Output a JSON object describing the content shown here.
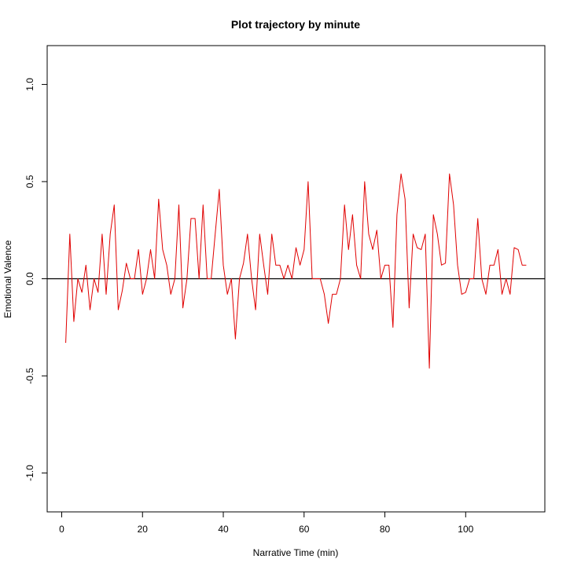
{
  "chart_data": {
    "type": "line",
    "title": "Plot trajectory by minute",
    "xlabel": "Narrative Time (min)",
    "ylabel": "Emotional Valence",
    "xlim": [
      -3.6,
      119.6
    ],
    "ylim": [
      -1.2,
      1.2
    ],
    "xticks": [
      0,
      20,
      40,
      60,
      80,
      100
    ],
    "yticks": [
      -1.0,
      -0.5,
      0.0,
      0.5,
      1.0
    ],
    "xtick_labels": [
      "0",
      "20",
      "40",
      "60",
      "80",
      "100"
    ],
    "ytick_labels": [
      "-1.0",
      "-0.5",
      "0.0",
      "0.5",
      "1.0"
    ],
    "reference_line_y": 0,
    "colors": {
      "series": "#e00000",
      "reference": "#000000",
      "frame": "#000000"
    },
    "grid": false,
    "series": [
      {
        "x": [
          1,
          2,
          3,
          4,
          5,
          6,
          7,
          8,
          9,
          10,
          11,
          12,
          13,
          14,
          15,
          16,
          17,
          18,
          19,
          20,
          21,
          22,
          23,
          24,
          25,
          26,
          27,
          28,
          29,
          30,
          31,
          32,
          33,
          34,
          35,
          36,
          37,
          38,
          39,
          40,
          41,
          42,
          43,
          44,
          45,
          46,
          47,
          48,
          49,
          50,
          51,
          52,
          53,
          54,
          55,
          56,
          57,
          58,
          59,
          60,
          61,
          62,
          63,
          64,
          65,
          66,
          67,
          68,
          69,
          70,
          71,
          72,
          73,
          74,
          75,
          76,
          77,
          78,
          79,
          80,
          81,
          82,
          83,
          84,
          85,
          86,
          87,
          88,
          89,
          90,
          91,
          92,
          93,
          94,
          95,
          96,
          97,
          98,
          99,
          100,
          101,
          102,
          103,
          104,
          105,
          106,
          107,
          108,
          109,
          110,
          111,
          112,
          113,
          114,
          115
        ],
        "y": [
          -0.33,
          0.23,
          -0.22,
          0.0,
          -0.07,
          0.07,
          -0.16,
          0.0,
          -0.07,
          0.23,
          -0.08,
          0.23,
          0.38,
          -0.16,
          -0.06,
          0.08,
          0.0,
          0.0,
          0.15,
          -0.08,
          0.0,
          0.15,
          0.0,
          0.41,
          0.15,
          0.07,
          -0.08,
          0.0,
          0.38,
          -0.15,
          0.0,
          0.31,
          0.31,
          0.0,
          0.38,
          0.0,
          0.0,
          0.23,
          0.46,
          0.07,
          -0.08,
          0.0,
          -0.31,
          0.0,
          0.08,
          0.23,
          0.0,
          -0.16,
          0.23,
          0.07,
          -0.08,
          0.23,
          0.07,
          0.07,
          0.0,
          0.07,
          0.0,
          0.16,
          0.07,
          0.15,
          0.5,
          0.0,
          0.0,
          0.0,
          -0.08,
          -0.23,
          -0.08,
          -0.08,
          0.0,
          0.38,
          0.15,
          0.33,
          0.07,
          0.0,
          0.5,
          0.23,
          0.15,
          0.25,
          0.0,
          0.07,
          0.07,
          -0.25,
          0.33,
          0.54,
          0.41,
          -0.15,
          0.23,
          0.16,
          0.15,
          0.23,
          -0.46,
          0.33,
          0.23,
          0.07,
          0.08,
          0.54,
          0.38,
          0.07,
          -0.08,
          -0.07,
          0.0,
          0.0,
          0.31,
          0.0,
          -0.08,
          0.07,
          0.07,
          0.15,
          -0.08,
          0.0,
          -0.08,
          0.16,
          0.15,
          0.07,
          0.07
        ]
      }
    ]
  }
}
